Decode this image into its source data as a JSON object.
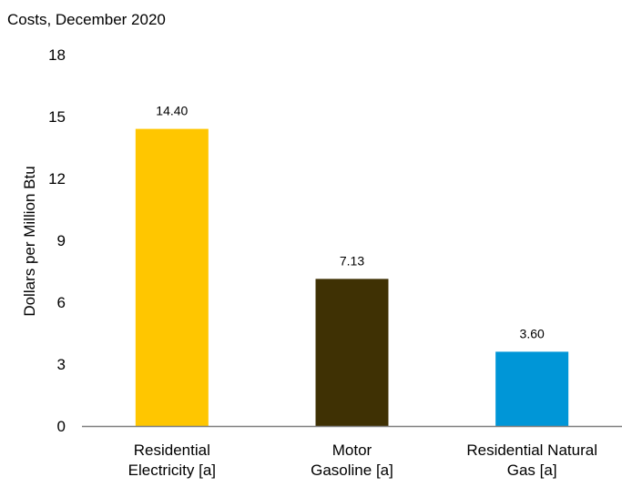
{
  "chart_data": {
    "type": "bar",
    "title": "Costs, December 2020",
    "xlabel": "",
    "ylabel": "Dollars per Million Btu",
    "ylim": [
      0,
      18
    ],
    "yticks": [
      0,
      3,
      6,
      9,
      12,
      15,
      18
    ],
    "grid": false,
    "legend": "none",
    "categories": [
      [
        "Residential",
        "Electricity [a]"
      ],
      [
        "Motor",
        "Gasoline [a]"
      ],
      [
        "Residential Natural",
        "Gas [a]"
      ]
    ],
    "values": [
      14.4,
      7.13,
      3.6
    ],
    "value_labels": [
      "14.40",
      "7.13",
      "3.60"
    ],
    "colors": [
      "#FFC600",
      "#3F3104",
      "#0096D7"
    ],
    "axis_color": "#7f7f7f"
  }
}
